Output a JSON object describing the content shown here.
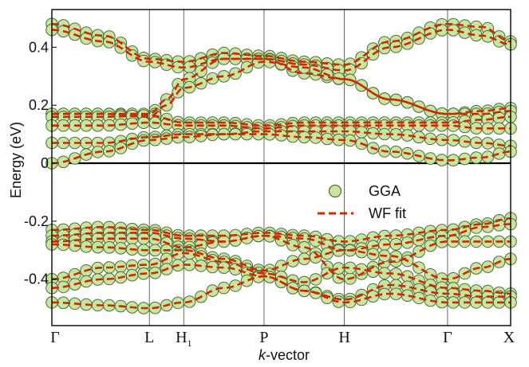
{
  "chart_data": {
    "type": "line",
    "title": "",
    "xlabel_italic": "k",
    "xlabel_rest": "-vector",
    "ylabel": "Energy (eV)",
    "ylim": [
      -0.56,
      0.53
    ],
    "xlim": [
      0,
      8
    ],
    "y_ticks": [
      {
        "value": 0.4,
        "label": "0.4"
      },
      {
        "value": 0.2,
        "label": "0.2"
      },
      {
        "value": 0.0,
        "label": "0"
      },
      {
        "value": -0.2,
        "label": "-0.2"
      },
      {
        "value": -0.4,
        "label": "-0.4"
      }
    ],
    "k_points": [
      {
        "x": 0,
        "label": "Γ",
        "sub": ""
      },
      {
        "x": 1.7,
        "label": "L",
        "sub": ""
      },
      {
        "x": 2.3,
        "label": "H",
        "sub": "1"
      },
      {
        "x": 3.7,
        "label": "P",
        "sub": ""
      },
      {
        "x": 5.1,
        "label": "H",
        "sub": ""
      },
      {
        "x": 6.9,
        "label": "Γ",
        "sub": ""
      },
      {
        "x": 8.0,
        "label": "X",
        "sub": ""
      }
    ],
    "fermi_level": 0,
    "legend": [
      {
        "name": "GGA",
        "style": "circles"
      },
      {
        "name": "WF fit",
        "style": "dashed"
      }
    ],
    "colors": {
      "marker_fill": "#c8e6a0",
      "marker_edge": "#4d6b3a",
      "fit_line": "#cc2a00",
      "axis": "#000000",
      "kline": "#555555"
    },
    "series": [
      {
        "x": [
          0,
          0.9,
          1.7,
          2.3,
          3.0,
          3.7,
          4.4,
          5.1,
          5.9,
          6.9,
          7.5,
          8.0
        ],
        "y": [
          0.48,
          0.44,
          0.36,
          0.35,
          0.38,
          0.37,
          0.35,
          0.34,
          0.42,
          0.48,
          0.47,
          0.42
        ]
      },
      {
        "x": [
          0,
          0.9,
          1.7,
          2.3,
          3.0,
          3.7,
          4.4,
          5.1,
          5.9,
          6.9,
          7.5,
          8.0
        ],
        "y": [
          0.46,
          0.42,
          0.35,
          0.33,
          0.36,
          0.36,
          0.34,
          0.32,
          0.4,
          0.46,
          0.44,
          0.41
        ]
      },
      {
        "x": [
          0,
          0.9,
          1.7,
          2.0,
          2.3,
          3.0,
          3.7,
          4.4,
          5.1,
          5.9,
          6.9,
          7.5,
          8.0
        ],
        "y": [
          0.17,
          0.17,
          0.17,
          0.22,
          0.29,
          0.36,
          0.36,
          0.31,
          0.29,
          0.22,
          0.17,
          0.18,
          0.19
        ]
      },
      {
        "x": [
          0,
          0.9,
          1.7,
          2.0,
          2.3,
          3.0,
          3.7,
          4.4,
          5.1,
          5.9,
          6.9,
          7.5,
          8.0
        ],
        "y": [
          0.17,
          0.17,
          0.16,
          0.2,
          0.26,
          0.3,
          0.35,
          0.33,
          0.29,
          0.22,
          0.17,
          0.17,
          0.18
        ]
      },
      {
        "x": [
          0,
          0.9,
          1.7,
          2.3,
          3.0,
          3.7,
          4.4,
          5.1,
          5.9,
          6.9,
          7.5,
          8.0
        ],
        "y": [
          0.16,
          0.16,
          0.165,
          0.14,
          0.14,
          0.13,
          0.14,
          0.14,
          0.14,
          0.14,
          0.15,
          0.16
        ]
      },
      {
        "x": [
          0,
          0.9,
          1.7,
          2.3,
          3.0,
          3.7,
          4.4,
          5.1,
          5.9,
          6.9,
          7.5,
          8.0
        ],
        "y": [
          0.13,
          0.13,
          0.14,
          0.13,
          0.13,
          0.12,
          0.13,
          0.13,
          0.13,
          0.13,
          0.12,
          0.12
        ]
      },
      {
        "x": [
          0,
          0.9,
          1.7,
          2.3,
          3.0,
          3.7,
          4.4,
          5.1,
          5.9,
          6.9,
          7.5,
          8.0
        ],
        "y": [
          0.07,
          0.07,
          0.09,
          0.1,
          0.1,
          0.11,
          0.11,
          0.11,
          0.1,
          0.08,
          0.07,
          0.06
        ]
      },
      {
        "x": [
          0,
          0.9,
          1.7,
          2.3,
          3.0,
          3.7,
          4.4,
          5.1,
          5.9,
          6.9,
          7.5,
          8.0
        ],
        "y": [
          0.0,
          0.04,
          0.08,
          0.09,
          0.1,
          0.1,
          0.09,
          0.08,
          0.04,
          0.01,
          0.02,
          0.04
        ]
      },
      {
        "x": [
          0,
          0.9,
          1.7,
          2.3,
          3.0,
          3.7,
          4.4,
          5.1,
          5.9,
          6.9,
          7.5,
          8.0
        ],
        "y": [
          -0.23,
          -0.22,
          -0.23,
          -0.25,
          -0.25,
          -0.24,
          -0.25,
          -0.27,
          -0.25,
          -0.23,
          -0.21,
          -0.19
        ]
      },
      {
        "x": [
          0,
          0.9,
          1.7,
          2.3,
          3.0,
          3.7,
          4.4,
          5.1,
          5.9,
          6.9,
          7.5,
          8.0
        ],
        "y": [
          -0.25,
          -0.24,
          -0.24,
          -0.26,
          -0.27,
          -0.25,
          -0.26,
          -0.3,
          -0.28,
          -0.25,
          -0.22,
          -0.21
        ]
      },
      {
        "x": [
          0,
          0.9,
          1.7,
          2.3,
          3.0,
          3.7,
          4.4,
          5.1,
          5.9,
          6.9,
          7.5,
          8.0
        ],
        "y": [
          -0.27,
          -0.26,
          -0.26,
          -0.29,
          -0.27,
          -0.25,
          -0.29,
          -0.4,
          -0.34,
          -0.27,
          -0.27,
          -0.27
        ]
      },
      {
        "x": [
          0,
          0.9,
          1.7,
          2.3,
          3.0,
          3.7,
          4.4,
          5.1,
          5.9,
          6.9,
          7.5,
          8.0
        ],
        "y": [
          -0.28,
          -0.29,
          -0.3,
          -0.3,
          -0.33,
          -0.37,
          -0.33,
          -0.3,
          -0.32,
          -0.4,
          -0.36,
          -0.33
        ]
      },
      {
        "x": [
          0,
          0.9,
          1.7,
          2.3,
          3.0,
          3.7,
          4.4,
          5.1,
          5.9,
          6.9,
          7.5,
          8.0
        ],
        "y": [
          -0.4,
          -0.36,
          -0.35,
          -0.31,
          -0.34,
          -0.38,
          -0.41,
          -0.36,
          -0.38,
          -0.43,
          -0.44,
          -0.45
        ]
      },
      {
        "x": [
          0,
          0.9,
          1.7,
          2.3,
          3.0,
          3.7,
          4.4,
          5.1,
          5.9,
          6.9,
          7.5,
          8.0
        ],
        "y": [
          -0.43,
          -0.4,
          -0.38,
          -0.35,
          -0.36,
          -0.39,
          -0.44,
          -0.47,
          -0.42,
          -0.45,
          -0.46,
          -0.46
        ]
      },
      {
        "x": [
          0,
          0.9,
          1.7,
          2.3,
          3.0,
          3.7,
          4.4,
          5.1,
          5.9,
          6.9,
          7.5,
          8.0
        ],
        "y": [
          -0.48,
          -0.49,
          -0.5,
          -0.48,
          -0.43,
          -0.39,
          -0.44,
          -0.48,
          -0.45,
          -0.48,
          -0.48,
          -0.48
        ]
      }
    ]
  }
}
